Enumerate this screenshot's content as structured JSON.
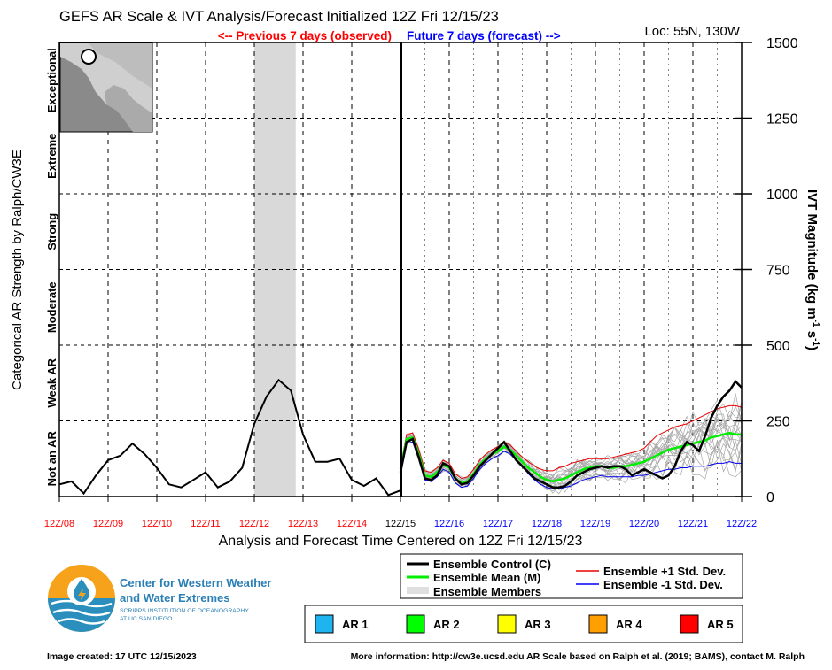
{
  "header": {
    "title": "GEFS AR Scale & IVT Analysis/Forecast Initialized 12Z Fri 12/15/23",
    "previous_label": "<-- Previous 7 days (observed)",
    "future_label": "Future 7 days (forecast) -->",
    "location": "Loc: 55N, 130W"
  },
  "axes": {
    "left_title": "Categorical AR Strength by Ralph/CW3E",
    "right_title_main": "IVT Magnitude (kg m",
    "right_title_sup1": "-1",
    "right_title_mid": " s",
    "right_title_sup2": "-1",
    "right_title_end": ")",
    "x_title": "Analysis and Forecast Time Centered on 12Z Fri 12/15/23",
    "categories": [
      "Not an AR",
      "Weak AR",
      "Moderate",
      "Strong",
      "Extreme",
      "Exceptional"
    ],
    "y_ticks": [
      "0",
      "250",
      "500",
      "750",
      "1000",
      "1250",
      "1500"
    ],
    "x_ticks_observed": [
      "12Z/08",
      "12Z/09",
      "12Z/10",
      "12Z/11",
      "12Z/12",
      "12Z/13",
      "12Z/14"
    ],
    "x_tick_center": "12Z/15",
    "x_ticks_forecast": [
      "12Z/16",
      "12Z/17",
      "12Z/18",
      "12Z/19",
      "12Z/20",
      "12Z/21",
      "12Z/22"
    ]
  },
  "legend": {
    "control": "Ensemble Control (C)",
    "mean": "Ensemble Mean (M)",
    "members": "Ensemble Members",
    "plus_std": "Ensemble +1 Std. Dev.",
    "minus_std": "Ensemble -1 Std. Dev."
  },
  "ar_scale": [
    {
      "label": "AR 1",
      "color": "#1eb4f0"
    },
    {
      "label": "AR 2",
      "color": "#00ff00"
    },
    {
      "label": "AR 3",
      "color": "#ffff00"
    },
    {
      "label": "AR 4",
      "color": "#ffa000"
    },
    {
      "label": "AR 5",
      "color": "#ff0000"
    }
  ],
  "logo": {
    "line1": "Center for Western Weather",
    "line2": "and Water Extremes",
    "line3": "SCRIPPS INSTITUTION OF OCEANOGRAPHY",
    "line4": "AT UC SAN DIEGO"
  },
  "footer": {
    "created": "Image created: 17 UTC 12/15/2023",
    "more_info": "More information: http://cw3e.ucsd.edu  AR Scale based on Ralph et al. (2019; BAMS), contact M. Ralph"
  },
  "colors": {
    "observed": "#ff0000",
    "forecast": "#0000ff",
    "control": "#000000",
    "mean": "#00ee00",
    "plus_std": "#ee0000",
    "minus_std": "#0000ee",
    "shade": "#d9d9d9"
  },
  "chart_data": {
    "type": "line",
    "title": "GEFS AR Scale & IVT Analysis/Forecast Initialized 12Z Fri 12/15/23",
    "xlabel": "Analysis and Forecast Time Centered on 12Z Fri 12/15/23",
    "ylabel": "IVT Magnitude (kg m-1 s-1)",
    "xlim_days": [
      -7,
      7
    ],
    "ylim": [
      0,
      1500
    ],
    "grid": true,
    "observed_shaded_days": [
      -3.0,
      -2.15
    ],
    "observed": {
      "name": "Analysis",
      "x_days": [
        -7,
        -6.75,
        -6.5,
        -6.25,
        -6,
        -5.75,
        -5.5,
        -5.25,
        -5,
        -4.75,
        -4.5,
        -4.25,
        -4,
        -3.75,
        -3.5,
        -3.25,
        -3,
        -2.75,
        -2.5,
        -2.25,
        -2,
        -1.75,
        -1.5,
        -1.25,
        -1,
        -0.75,
        -0.5,
        -0.25,
        0
      ],
      "values": [
        40,
        50,
        10,
        70,
        120,
        135,
        175,
        140,
        95,
        40,
        30,
        55,
        80,
        30,
        50,
        95,
        240,
        330,
        385,
        350,
        205,
        115,
        115,
        125,
        55,
        35,
        60,
        5,
        20
      ]
    },
    "forecast_x_days": [
      0,
      0.125,
      0.25,
      0.375,
      0.5,
      0.625,
      0.75,
      0.875,
      1,
      1.125,
      1.25,
      1.375,
      1.5,
      1.625,
      1.75,
      1.875,
      2,
      2.125,
      2.25,
      2.375,
      2.5,
      2.625,
      2.75,
      2.875,
      3,
      3.125,
      3.25,
      3.375,
      3.5,
      3.625,
      3.75,
      3.875,
      4,
      4.125,
      4.25,
      4.375,
      4.5,
      4.625,
      4.75,
      4.875,
      5,
      5.125,
      5.25,
      5.375,
      5.5,
      5.625,
      5.75,
      5.875,
      6,
      6.125,
      6.25,
      6.375,
      6.5,
      6.625,
      6.75,
      6.875,
      7
    ],
    "series": [
      {
        "name": "Ensemble Control (C)",
        "values": [
          80,
          180,
          190,
          130,
          60,
          55,
          70,
          110,
          100,
          60,
          40,
          45,
          70,
          100,
          120,
          140,
          160,
          180,
          150,
          120,
          100,
          80,
          60,
          50,
          40,
          30,
          30,
          35,
          50,
          70,
          80,
          90,
          95,
          100,
          95,
          100,
          100,
          90,
          70,
          80,
          90,
          80,
          70,
          60,
          70,
          100,
          150,
          180,
          170,
          150,
          200,
          260,
          300,
          330,
          350,
          380,
          360
        ]
      },
      {
        "name": "Ensemble Mean (M)",
        "values": [
          90,
          190,
          195,
          140,
          70,
          65,
          80,
          105,
          95,
          60,
          45,
          50,
          75,
          105,
          125,
          140,
          150,
          165,
          155,
          135,
          115,
          95,
          80,
          65,
          55,
          50,
          55,
          60,
          70,
          80,
          90,
          95,
          100,
          100,
          95,
          95,
          100,
          100,
          105,
          110,
          115,
          125,
          135,
          145,
          155,
          160,
          165,
          170,
          175,
          180,
          185,
          195,
          200,
          205,
          210,
          205,
          205
        ]
      },
      {
        "name": "Ensemble +1 Std. Dev.",
        "values": [
          100,
          205,
          210,
          155,
          85,
          80,
          95,
          120,
          110,
          75,
          60,
          65,
          90,
          120,
          140,
          155,
          165,
          180,
          170,
          150,
          130,
          115,
          100,
          90,
          85,
          85,
          95,
          100,
          110,
          115,
          120,
          125,
          125,
          125,
          125,
          130,
          135,
          140,
          145,
          150,
          160,
          180,
          200,
          210,
          220,
          230,
          235,
          240,
          250,
          260,
          270,
          280,
          290,
          295,
          300,
          300,
          295
        ]
      },
      {
        "name": "Ensemble -1 Std. Dev.",
        "values": [
          75,
          175,
          180,
          125,
          55,
          50,
          65,
          90,
          80,
          45,
          30,
          35,
          60,
          90,
          110,
          125,
          135,
          150,
          140,
          120,
          100,
          75,
          55,
          40,
          30,
          25,
          25,
          30,
          35,
          45,
          55,
          60,
          65,
          70,
          65,
          65,
          65,
          65,
          65,
          70,
          70,
          75,
          80,
          85,
          90,
          90,
          95,
          95,
          100,
          100,
          100,
          105,
          110,
          110,
          115,
          110,
          110
        ]
      }
    ],
    "members_count": 20
  }
}
